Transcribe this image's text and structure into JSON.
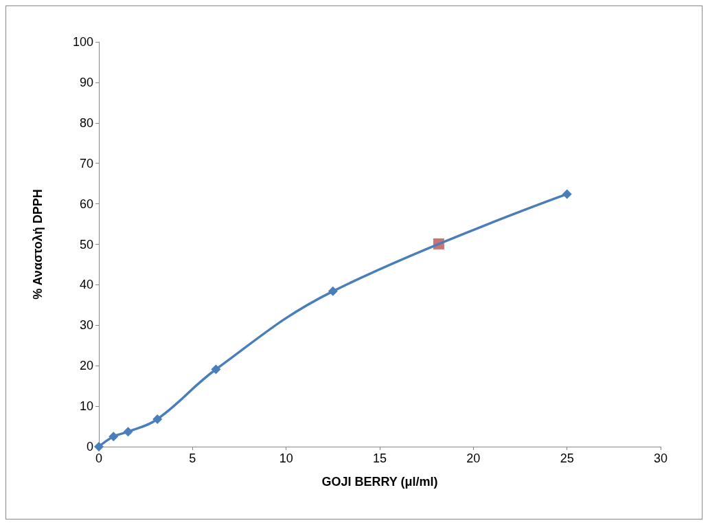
{
  "chart_data": {
    "type": "line",
    "xlabel": "GOJI BERRY (μl/ml)",
    "ylabel": "% Αναστολή DPPH",
    "series": [
      {
        "color": "#4a7ebb",
        "marker": "diamond",
        "x": [
          0,
          0.78,
          1.56,
          3.125,
          6.25,
          12.5,
          25
        ],
        "values": [
          0,
          2.5,
          3.7,
          6.8,
          19.1,
          38.4,
          62.4
        ]
      },
      {
        "type": "scatter",
        "color": "#c0504d",
        "marker": "square",
        "x": [
          18.15
        ],
        "values": [
          50.1
        ]
      }
    ],
    "xlim": [
      0,
      30
    ],
    "xticks": [
      0,
      5,
      10,
      15,
      20,
      25,
      30
    ],
    "ylim": [
      0,
      100
    ],
    "yticks": [
      0,
      10,
      20,
      30,
      40,
      50,
      60,
      70,
      80,
      90,
      100
    ],
    "grid": false
  }
}
